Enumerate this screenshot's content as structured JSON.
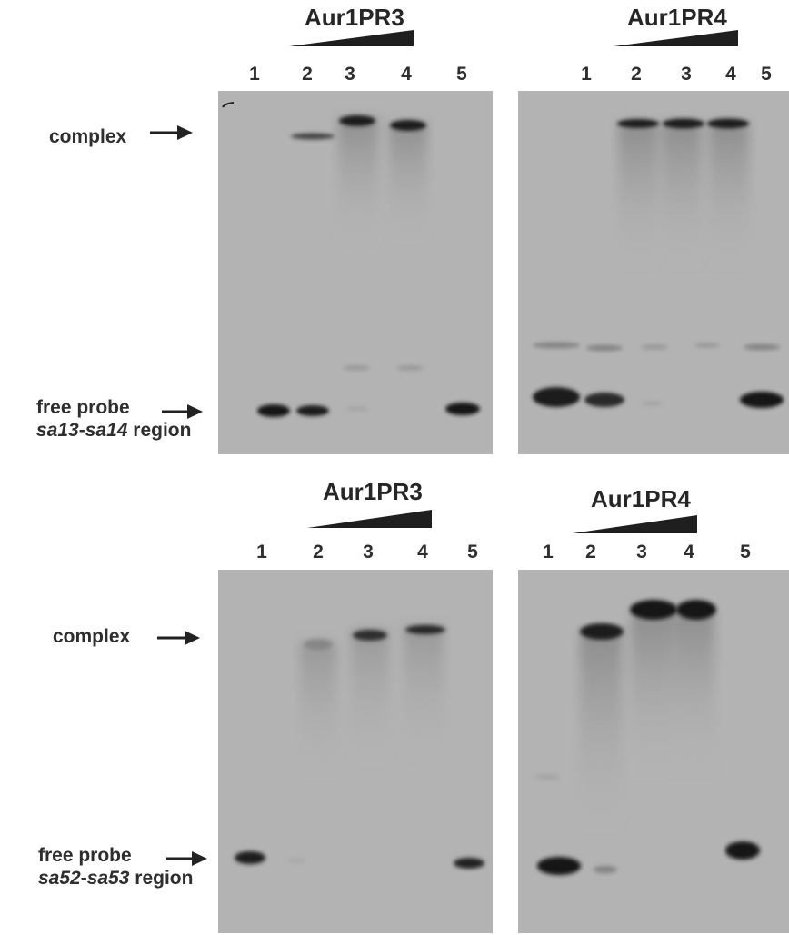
{
  "panels": {
    "top_left": {
      "protein": "Aur1PR3",
      "lanes": [
        "1",
        "2",
        "3",
        "4",
        "5"
      ]
    },
    "top_right": {
      "protein": "Aur1PR4",
      "lanes": [
        "1",
        "2",
        "3",
        "4",
        "5"
      ]
    },
    "bottom_left": {
      "protein": "Aur1PR3",
      "lanes": [
        "1",
        "2",
        "3",
        "4",
        "5"
      ]
    },
    "bottom_right": {
      "protein": "Aur1PR4",
      "lanes": [
        "1",
        "2",
        "3",
        "4",
        "5"
      ]
    }
  },
  "labels": {
    "top": {
      "complex": "complex",
      "free_probe": "free probe",
      "region_a": "sa13",
      "region_dash": "-",
      "region_b": "sa14",
      "region_suffix": " region"
    },
    "bottom": {
      "complex": "complex",
      "free_probe": "free probe",
      "region_a": "sa52",
      "region_dash": "-",
      "region_b": "sa53",
      "region_suffix": " region"
    }
  },
  "colors": {
    "gel_background": "#b3b3b3",
    "band": "#1a1a1a",
    "wedge": "#1f1f1f",
    "arrow": "#222222"
  }
}
